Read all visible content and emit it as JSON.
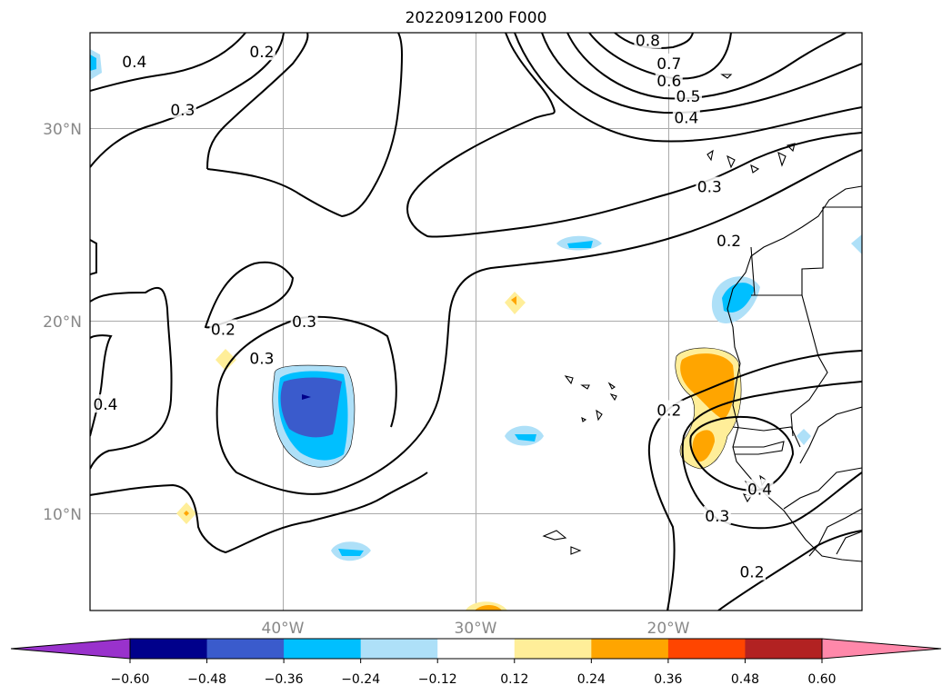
{
  "title": "2022091200 F000",
  "map": {
    "lat_labels": [
      "30°N",
      "20°N",
      "10°N"
    ],
    "lon_labels": [
      "40°W",
      "30°W",
      "20°W"
    ],
    "lat_values": [
      30,
      20,
      10
    ],
    "lon_values": [
      -40,
      -30,
      -20
    ],
    "lon_range": [
      -50,
      -10
    ],
    "lat_range": [
      5,
      35
    ],
    "grid": true,
    "contour_labels": [
      {
        "text": "0.8",
        "lon": -21.1,
        "lat": 34.6
      },
      {
        "text": "0.7",
        "lon": -20.0,
        "lat": 33.4
      },
      {
        "text": "0.6",
        "lon": -20.0,
        "lat": 32.5
      },
      {
        "text": "0.5",
        "lon": -19.0,
        "lat": 31.7
      },
      {
        "text": "0.4",
        "lon": -19.1,
        "lat": 30.6
      },
      {
        "text": "0.3",
        "lon": -17.9,
        "lat": 27.0
      },
      {
        "text": "0.2",
        "lon": -16.9,
        "lat": 24.2
      },
      {
        "text": "0.4",
        "lon": -47.7,
        "lat": 33.5
      },
      {
        "text": "0.3",
        "lon": -45.2,
        "lat": 31.0
      },
      {
        "text": "0.2",
        "lon": -41.1,
        "lat": 34.0
      },
      {
        "text": "0.2",
        "lon": -43.1,
        "lat": 19.6
      },
      {
        "text": "0.3",
        "lon": -41.1,
        "lat": 18.1
      },
      {
        "text": "0.3",
        "lon": -38.9,
        "lat": 20.0
      },
      {
        "text": "0.4",
        "lon": -49.2,
        "lat": 15.7
      },
      {
        "text": "0.2",
        "lon": -20.0,
        "lat": 15.4
      },
      {
        "text": "0.3",
        "lon": -17.5,
        "lat": 9.9
      },
      {
        "text": "0.4",
        "lon": -15.3,
        "lat": 11.3
      },
      {
        "text": "0.2",
        "lon": -15.7,
        "lat": 7.0
      }
    ]
  },
  "colorbar": {
    "tick_labels": [
      "−0.60",
      "−0.48",
      "−0.36",
      "−0.24",
      "−0.12",
      "0.12",
      "0.24",
      "0.36",
      "0.48",
      "0.60"
    ],
    "colors": [
      "#9932cc",
      "#00008b",
      "#3a5bcc",
      "#00bfff",
      "#aee0f8",
      "#ffffff",
      "#ffee99",
      "#ffa500",
      "#ff4500",
      "#b22222",
      "#ff88aa"
    ]
  },
  "shading": {
    "positive_colors": [
      "#ffee99",
      "#ffa500"
    ],
    "negative_colors": [
      "#aee0f8",
      "#00bfff",
      "#3a5bcc",
      "#00008b"
    ]
  }
}
